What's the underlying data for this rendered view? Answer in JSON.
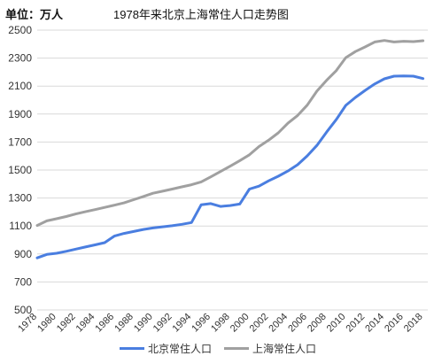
{
  "unit_label": "单位：万人",
  "chart_data": {
    "type": "line",
    "title": "1978年来北京上海常住人口走势图",
    "xlabel": "",
    "ylabel": "",
    "ylim": [
      500,
      2500
    ],
    "y_ticks": [
      500,
      700,
      900,
      1100,
      1300,
      1500,
      1700,
      1900,
      2100,
      2300,
      2500
    ],
    "x_tick_labels": [
      "1978",
      "1980",
      "1982",
      "1984",
      "1986",
      "1988",
      "1990",
      "1992",
      "1994",
      "1996",
      "1998",
      "2000",
      "2002",
      "2004",
      "2006",
      "2008",
      "2010",
      "2012",
      "2014",
      "2016",
      "2018"
    ],
    "x": [
      1978,
      1979,
      1980,
      1981,
      1982,
      1983,
      1984,
      1985,
      1986,
      1987,
      1988,
      1989,
      1990,
      1991,
      1992,
      1993,
      1994,
      1995,
      1996,
      1997,
      1998,
      1999,
      2000,
      2001,
      2002,
      2003,
      2004,
      2005,
      2006,
      2007,
      2008,
      2009,
      2010,
      2011,
      2012,
      2013,
      2014,
      2015,
      2016,
      2017,
      2018
    ],
    "grid": true,
    "legend_position": "bottom",
    "series": [
      {
        "name": "北京常住人口",
        "color": "#4a7ee0",
        "values": [
          872,
          897,
          905,
          919,
          935,
          950,
          965,
          981,
          1028,
          1047,
          1061,
          1075,
          1086,
          1094,
          1102,
          1112,
          1125,
          1251,
          1260,
          1240,
          1246,
          1257,
          1364,
          1385,
          1423,
          1456,
          1493,
          1538,
          1601,
          1676,
          1771,
          1860,
          1962,
          2019,
          2069,
          2115,
          2152,
          2171,
          2173,
          2171,
          2154
        ]
      },
      {
        "name": "上海常住人口",
        "color": "#a0a0a0",
        "values": [
          1104,
          1137,
          1152,
          1168,
          1186,
          1202,
          1217,
          1233,
          1249,
          1265,
          1288,
          1311,
          1334,
          1349,
          1364,
          1380,
          1395,
          1415,
          1451,
          1489,
          1527,
          1567,
          1609,
          1668,
          1713,
          1766,
          1835,
          1890,
          1964,
          2064,
          2141,
          2210,
          2303,
          2347,
          2380,
          2415,
          2426,
          2415,
          2420,
          2418,
          2424
        ]
      }
    ]
  }
}
